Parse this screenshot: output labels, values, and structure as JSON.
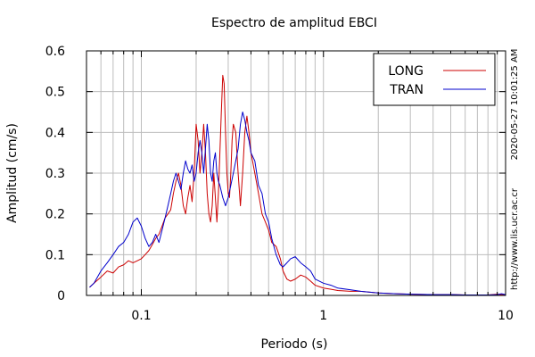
{
  "chart_data": {
    "type": "line",
    "title": "Espectro de amplitud EBCI",
    "xlabel": "Periodo (s)",
    "ylabel": "Amplitud (cm/s)",
    "xscale": "log",
    "xlim": [
      0.05,
      10
    ],
    "ylim": [
      0,
      0.6
    ],
    "grid": true,
    "legend_position": "top-right",
    "x_ticks": [
      {
        "value": 0.1,
        "label": "0.1"
      },
      {
        "value": 1,
        "label": "1"
      },
      {
        "value": 10,
        "label": "10"
      }
    ],
    "y_ticks": [
      {
        "value": 0,
        "label": "0"
      },
      {
        "value": 0.1,
        "label": "0.1"
      },
      {
        "value": 0.2,
        "label": "0.2"
      },
      {
        "value": 0.3,
        "label": "0.3"
      },
      {
        "value": 0.4,
        "label": "0.4"
      },
      {
        "value": 0.5,
        "label": "0.5"
      },
      {
        "value": 0.6,
        "label": "0.6"
      }
    ],
    "series": [
      {
        "name": "LONG",
        "color": "#cc0000",
        "points": [
          [
            0.052,
            0.02
          ],
          [
            0.055,
            0.03
          ],
          [
            0.06,
            0.045
          ],
          [
            0.065,
            0.06
          ],
          [
            0.07,
            0.055
          ],
          [
            0.075,
            0.07
          ],
          [
            0.08,
            0.075
          ],
          [
            0.085,
            0.085
          ],
          [
            0.09,
            0.08
          ],
          [
            0.095,
            0.085
          ],
          [
            0.1,
            0.09
          ],
          [
            0.105,
            0.1
          ],
          [
            0.11,
            0.11
          ],
          [
            0.115,
            0.125
          ],
          [
            0.12,
            0.14
          ],
          [
            0.125,
            0.15
          ],
          [
            0.13,
            0.17
          ],
          [
            0.135,
            0.19
          ],
          [
            0.14,
            0.2
          ],
          [
            0.145,
            0.21
          ],
          [
            0.15,
            0.25
          ],
          [
            0.155,
            0.28
          ],
          [
            0.16,
            0.3
          ],
          [
            0.165,
            0.27
          ],
          [
            0.17,
            0.22
          ],
          [
            0.175,
            0.2
          ],
          [
            0.18,
            0.24
          ],
          [
            0.185,
            0.27
          ],
          [
            0.19,
            0.23
          ],
          [
            0.195,
            0.3
          ],
          [
            0.2,
            0.42
          ],
          [
            0.205,
            0.38
          ],
          [
            0.21,
            0.3
          ],
          [
            0.215,
            0.35
          ],
          [
            0.22,
            0.42
          ],
          [
            0.225,
            0.35
          ],
          [
            0.23,
            0.25
          ],
          [
            0.235,
            0.2
          ],
          [
            0.24,
            0.18
          ],
          [
            0.245,
            0.22
          ],
          [
            0.25,
            0.3
          ],
          [
            0.255,
            0.24
          ],
          [
            0.26,
            0.18
          ],
          [
            0.265,
            0.25
          ],
          [
            0.27,
            0.35
          ],
          [
            0.275,
            0.45
          ],
          [
            0.28,
            0.54
          ],
          [
            0.285,
            0.52
          ],
          [
            0.29,
            0.4
          ],
          [
            0.295,
            0.3
          ],
          [
            0.3,
            0.25
          ],
          [
            0.305,
            0.24
          ],
          [
            0.31,
            0.3
          ],
          [
            0.315,
            0.38
          ],
          [
            0.32,
            0.42
          ],
          [
            0.33,
            0.4
          ],
          [
            0.34,
            0.3
          ],
          [
            0.35,
            0.22
          ],
          [
            0.36,
            0.3
          ],
          [
            0.37,
            0.4
          ],
          [
            0.38,
            0.44
          ],
          [
            0.39,
            0.4
          ],
          [
            0.4,
            0.35
          ],
          [
            0.42,
            0.3
          ],
          [
            0.44,
            0.25
          ],
          [
            0.46,
            0.2
          ],
          [
            0.48,
            0.18
          ],
          [
            0.5,
            0.16
          ],
          [
            0.52,
            0.13
          ],
          [
            0.55,
            0.12
          ],
          [
            0.58,
            0.09
          ],
          [
            0.6,
            0.06
          ],
          [
            0.63,
            0.04
          ],
          [
            0.66,
            0.035
          ],
          [
            0.7,
            0.04
          ],
          [
            0.75,
            0.05
          ],
          [
            0.8,
            0.045
          ],
          [
            0.85,
            0.035
          ],
          [
            0.9,
            0.025
          ],
          [
            1.0,
            0.018
          ],
          [
            1.1,
            0.015
          ],
          [
            1.2,
            0.012
          ],
          [
            1.4,
            0.01
          ],
          [
            1.6,
            0.01
          ],
          [
            1.8,
            0.008
          ],
          [
            2.0,
            0.006
          ],
          [
            2.5,
            0.004
          ],
          [
            3.0,
            0.003
          ],
          [
            4.0,
            0.002
          ],
          [
            5.0,
            0.002
          ],
          [
            6.0,
            0.001
          ],
          [
            8.0,
            0.001
          ],
          [
            9.0,
            0.003
          ],
          [
            9.5,
            0.002
          ],
          [
            10.0,
            0.001
          ]
        ]
      },
      {
        "name": "TRAN",
        "color": "#0000cc",
        "points": [
          [
            0.052,
            0.02
          ],
          [
            0.055,
            0.03
          ],
          [
            0.06,
            0.06
          ],
          [
            0.065,
            0.08
          ],
          [
            0.07,
            0.1
          ],
          [
            0.075,
            0.12
          ],
          [
            0.08,
            0.13
          ],
          [
            0.085,
            0.15
          ],
          [
            0.09,
            0.18
          ],
          [
            0.095,
            0.19
          ],
          [
            0.1,
            0.17
          ],
          [
            0.105,
            0.14
          ],
          [
            0.11,
            0.12
          ],
          [
            0.115,
            0.13
          ],
          [
            0.12,
            0.15
          ],
          [
            0.125,
            0.13
          ],
          [
            0.13,
            0.16
          ],
          [
            0.135,
            0.19
          ],
          [
            0.14,
            0.22
          ],
          [
            0.145,
            0.25
          ],
          [
            0.15,
            0.28
          ],
          [
            0.155,
            0.3
          ],
          [
            0.16,
            0.28
          ],
          [
            0.165,
            0.26
          ],
          [
            0.17,
            0.3
          ],
          [
            0.175,
            0.33
          ],
          [
            0.18,
            0.31
          ],
          [
            0.185,
            0.3
          ],
          [
            0.19,
            0.32
          ],
          [
            0.195,
            0.28
          ],
          [
            0.2,
            0.3
          ],
          [
            0.205,
            0.35
          ],
          [
            0.21,
            0.38
          ],
          [
            0.215,
            0.35
          ],
          [
            0.22,
            0.3
          ],
          [
            0.225,
            0.36
          ],
          [
            0.23,
            0.42
          ],
          [
            0.235,
            0.38
          ],
          [
            0.24,
            0.3
          ],
          [
            0.245,
            0.28
          ],
          [
            0.25,
            0.33
          ],
          [
            0.255,
            0.35
          ],
          [
            0.26,
            0.3
          ],
          [
            0.265,
            0.28
          ],
          [
            0.27,
            0.27
          ],
          [
            0.28,
            0.24
          ],
          [
            0.29,
            0.22
          ],
          [
            0.3,
            0.24
          ],
          [
            0.31,
            0.27
          ],
          [
            0.32,
            0.3
          ],
          [
            0.33,
            0.33
          ],
          [
            0.34,
            0.36
          ],
          [
            0.35,
            0.42
          ],
          [
            0.36,
            0.45
          ],
          [
            0.37,
            0.43
          ],
          [
            0.38,
            0.4
          ],
          [
            0.39,
            0.38
          ],
          [
            0.4,
            0.35
          ],
          [
            0.42,
            0.33
          ],
          [
            0.44,
            0.27
          ],
          [
            0.46,
            0.25
          ],
          [
            0.48,
            0.2
          ],
          [
            0.5,
            0.18
          ],
          [
            0.52,
            0.14
          ],
          [
            0.55,
            0.1
          ],
          [
            0.58,
            0.075
          ],
          [
            0.6,
            0.07
          ],
          [
            0.63,
            0.08
          ],
          [
            0.66,
            0.09
          ],
          [
            0.7,
            0.095
          ],
          [
            0.75,
            0.08
          ],
          [
            0.8,
            0.07
          ],
          [
            0.85,
            0.06
          ],
          [
            0.9,
            0.04
          ],
          [
            1.0,
            0.03
          ],
          [
            1.1,
            0.025
          ],
          [
            1.2,
            0.018
          ],
          [
            1.4,
            0.014
          ],
          [
            1.6,
            0.01
          ],
          [
            1.8,
            0.008
          ],
          [
            2.0,
            0.006
          ],
          [
            2.5,
            0.004
          ],
          [
            3.0,
            0.003
          ],
          [
            4.0,
            0.002
          ],
          [
            5.0,
            0.002
          ],
          [
            6.0,
            0.001
          ],
          [
            8.0,
            0.001
          ],
          [
            9.0,
            0.002
          ],
          [
            9.5,
            0.004
          ],
          [
            10.0,
            0.002
          ]
        ]
      }
    ]
  },
  "side_labels": {
    "timestamp": "2020-05-27 10:01:25 AM",
    "url": "http://www.lis.ucr.ac.cr"
  }
}
